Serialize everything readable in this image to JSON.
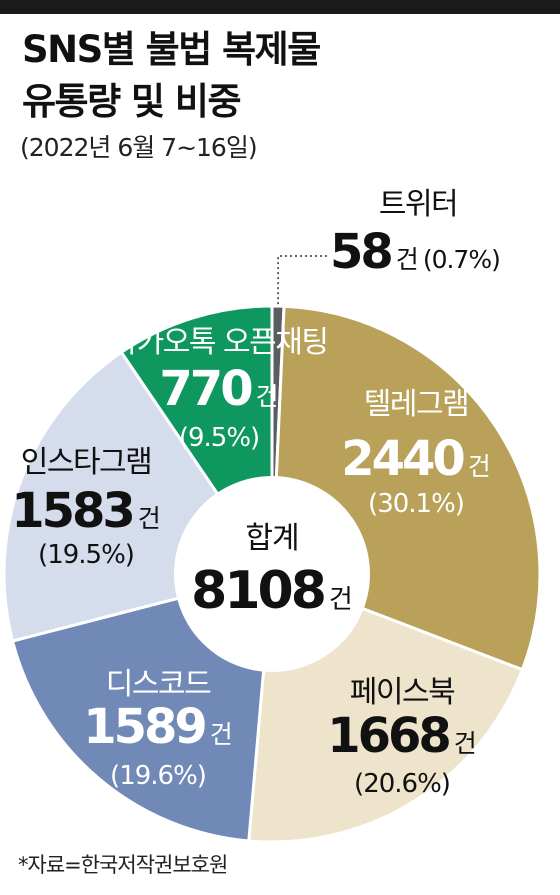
{
  "title_line1": "SNS별 불법 복제물",
  "title_line2": "유통량 및 비중",
  "subtitle": "(2022년 6월 7~16일)",
  "source": "*자료=한국저작권보호원",
  "chart_data": {
    "type": "pie",
    "title": "SNS별 불법 복제물 유통량 및 비중",
    "subtitle": "(2022년 6월 7~16일)",
    "unit": "건",
    "total_label": "합계",
    "total_value": "8108",
    "slices": [
      {
        "name": "트위터",
        "value": 58,
        "value_text": "58",
        "percent_text": "(0.7%)",
        "color": "#5b5e60",
        "text_color": "#111111"
      },
      {
        "name": "텔레그램",
        "value": 2440,
        "value_text": "2440",
        "percent_text": "(30.1%)",
        "color": "#b9a15a",
        "text_color": "#ffffff"
      },
      {
        "name": "페이스북",
        "value": 1668,
        "value_text": "1668",
        "percent_text": "(20.6%)",
        "color": "#eee4cc",
        "text_color": "#111111"
      },
      {
        "name": "디스코드",
        "value": 1589,
        "value_text": "1589",
        "percent_text": "(19.6%)",
        "color": "#7189b6",
        "text_color": "#ffffff"
      },
      {
        "name": "인스타그램",
        "value": 1583,
        "value_text": "1583",
        "percent_text": "(19.5%)",
        "color": "#d5dcec",
        "text_color": "#111111"
      },
      {
        "name": "카카오톡 오픈채팅",
        "value": 770,
        "value_text": "770",
        "percent_text": "(9.5%)",
        "color": "#0f9760",
        "text_color": "#ffffff"
      }
    ]
  }
}
